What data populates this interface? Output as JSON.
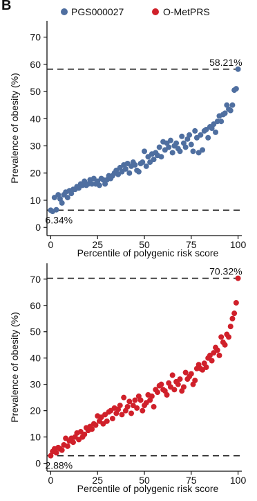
{
  "panel_letter": "B",
  "legend": [
    {
      "label": "PGS000027",
      "color": "#4f6fa0"
    },
    {
      "label": "O-MetPRS",
      "color": "#d0202a"
    }
  ],
  "chart_data": [
    {
      "type": "scatter",
      "series": [
        {
          "name": "PGS000027",
          "color": "#4f6fa0"
        }
      ],
      "xlabel": "Percentile of polygenic risk score",
      "ylabel": "Prevalence of obesity (%)",
      "xlim": [
        -2,
        102
      ],
      "ylim": [
        -3,
        76
      ],
      "xticks": [
        0,
        25,
        50,
        75,
        100
      ],
      "yticks": [
        0,
        10,
        20,
        30,
        40,
        50,
        60,
        70
      ],
      "hlines": [
        58.21,
        6.34
      ],
      "annotations": [
        {
          "text": "58.21%",
          "x": 100,
          "y": 58.21,
          "anchor": "above-end"
        },
        {
          "text": "6.34%",
          "x": 0,
          "y": 6.34,
          "anchor": "below-start"
        }
      ],
      "x": [
        0,
        1,
        2,
        3,
        4,
        5,
        6,
        7,
        8,
        9,
        10,
        11,
        12,
        13,
        14,
        15,
        16,
        17,
        18,
        19,
        20,
        21,
        22,
        23,
        24,
        25,
        26,
        27,
        28,
        29,
        30,
        31,
        32,
        33,
        34,
        35,
        36,
        37,
        38,
        39,
        40,
        41,
        42,
        43,
        44,
        45,
        46,
        47,
        48,
        49,
        50,
        51,
        52,
        53,
        54,
        55,
        56,
        57,
        58,
        59,
        60,
        61,
        62,
        63,
        64,
        65,
        66,
        67,
        68,
        69,
        70,
        71,
        72,
        73,
        74,
        75,
        76,
        77,
        78,
        79,
        80,
        81,
        82,
        83,
        84,
        85,
        86,
        87,
        88,
        89,
        90,
        91,
        92,
        93,
        94,
        95,
        96,
        97,
        98,
        99,
        100
      ],
      "y": [
        6.34,
        5.9,
        11.0,
        6.5,
        12.0,
        10.5,
        9.0,
        12.0,
        13.0,
        11.0,
        13.5,
        12.5,
        14.0,
        14.0,
        15.0,
        14.5,
        16.0,
        15.5,
        17.0,
        15.5,
        16.0,
        17.5,
        16.0,
        18.0,
        16.0,
        17.0,
        15.5,
        18.0,
        17.5,
        16.0,
        17.5,
        19.0,
        18.0,
        19.0,
        20.0,
        21.0,
        19.5,
        22.0,
        20.5,
        23.0,
        21.5,
        23.5,
        20.0,
        22.5,
        24.0,
        23.0,
        21.0,
        20.5,
        23.5,
        24.0,
        28.0,
        22.5,
        26.0,
        24.0,
        27.0,
        25.0,
        27.5,
        26.5,
        29.5,
        26.0,
        31.5,
        28.5,
        31.0,
        29.5,
        32.0,
        27.5,
        30.0,
        31.0,
        29.0,
        28.0,
        33.5,
        31.0,
        29.5,
        32.5,
        34.0,
        30.5,
        28.0,
        35.5,
        33.0,
        27.5,
        34.0,
        28.5,
        35.5,
        36.0,
        33.0,
        37.0,
        36.5,
        38.0,
        35.0,
        39.0,
        41.0,
        39.0,
        41.5,
        42.0,
        45.0,
        43.5,
        43.0,
        45.0,
        50.5,
        51.0,
        58.21
      ]
    },
    {
      "type": "scatter",
      "series": [
        {
          "name": "O-MetPRS",
          "color": "#d0202a"
        }
      ],
      "xlabel": "Percentile of polygenic risk score",
      "ylabel": "Prevalence of obesity (%)",
      "xlim": [
        -2,
        102
      ],
      "ylim": [
        -3,
        76
      ],
      "xticks": [
        0,
        25,
        50,
        75,
        100
      ],
      "yticks": [
        0,
        10,
        20,
        30,
        40,
        50,
        60,
        70
      ],
      "hlines": [
        70.32,
        2.88
      ],
      "annotations": [
        {
          "text": "70.32%",
          "x": 100,
          "y": 70.32,
          "anchor": "above-end"
        },
        {
          "text": "2.88%",
          "x": 0,
          "y": 2.88,
          "anchor": "below-start"
        }
      ],
      "x": [
        0,
        1,
        2,
        3,
        4,
        5,
        6,
        7,
        8,
        9,
        10,
        11,
        12,
        13,
        14,
        15,
        16,
        17,
        18,
        19,
        20,
        21,
        22,
        23,
        24,
        25,
        26,
        27,
        28,
        29,
        30,
        31,
        32,
        33,
        34,
        35,
        36,
        37,
        38,
        39,
        40,
        41,
        42,
        43,
        44,
        45,
        46,
        47,
        48,
        49,
        50,
        51,
        52,
        53,
        54,
        55,
        56,
        57,
        58,
        59,
        60,
        61,
        62,
        63,
        64,
        65,
        66,
        67,
        68,
        69,
        70,
        71,
        72,
        73,
        74,
        75,
        76,
        77,
        78,
        79,
        80,
        81,
        82,
        83,
        84,
        85,
        86,
        87,
        88,
        89,
        90,
        91,
        92,
        93,
        94,
        95,
        96,
        97,
        98,
        99,
        100
      ],
      "y": [
        2.88,
        4.5,
        5.5,
        4.0,
        6.0,
        5.5,
        5.0,
        7.0,
        9.5,
        6.5,
        8.5,
        9.5,
        8.0,
        10.0,
        11.5,
        9.0,
        12.0,
        10.0,
        11.0,
        13.5,
        12.5,
        14.0,
        13.0,
        15.0,
        14.5,
        18.0,
        16.0,
        17.5,
        15.0,
        18.5,
        16.0,
        19.5,
        20.0,
        17.0,
        21.0,
        19.0,
        20.5,
        22.0,
        18.5,
        25.0,
        20.0,
        21.5,
        23.5,
        19.0,
        22.0,
        24.0,
        21.0,
        25.5,
        24.0,
        20.0,
        22.0,
        23.0,
        26.0,
        24.0,
        25.5,
        21.5,
        28.0,
        27.0,
        29.5,
        30.0,
        28.0,
        27.5,
        26.0,
        30.5,
        29.0,
        33.5,
        28.0,
        31.0,
        30.0,
        32.0,
        27.5,
        29.0,
        34.5,
        32.0,
        33.0,
        34.0,
        30.0,
        31.5,
        36.0,
        37.5,
        36.0,
        35.5,
        38.0,
        36.5,
        40.0,
        41.0,
        39.0,
        42.0,
        44.0,
        43.0,
        41.0,
        48.0,
        46.0,
        45.0,
        49.0,
        48.0,
        52.0,
        55.0,
        57.0,
        61.0,
        70.32
      ]
    }
  ]
}
